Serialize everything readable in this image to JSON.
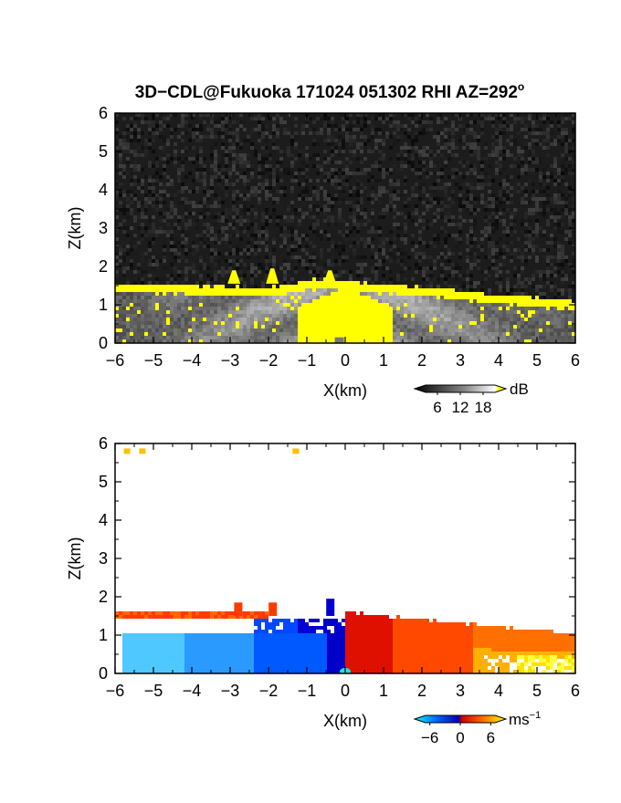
{
  "title": "3D−CDL@Fukuoka 171024 051302 RHI AZ=292",
  "title_superscript": "o",
  "chart_data": [
    {
      "type": "heatmap",
      "quantity": "reflectivity",
      "xlabel": "X(km)",
      "ylabel": "Z(km)",
      "xlim": [
        -6,
        6
      ],
      "ylim": [
        0,
        6
      ],
      "xticks": [
        "−6",
        "−5",
        "−4",
        "−3",
        "−2",
        "−1",
        "0",
        "1",
        "2",
        "3",
        "4",
        "5",
        "6"
      ],
      "yticks": [
        "0",
        "1",
        "2",
        "3",
        "4",
        "5",
        "6"
      ],
      "colorbar": {
        "unit": "dB",
        "ticks": [
          "6",
          "12",
          "18"
        ],
        "tick_values": [
          6,
          12,
          18
        ],
        "range": [
          0,
          24
        ],
        "colors": [
          "#000000",
          "#ffffff",
          "#ffff00"
        ]
      },
      "background_color": "#1a1a1a",
      "features": {
        "layer_top_km": [
          [
            -6,
            1.55
          ],
          [
            -4,
            1.5
          ],
          [
            -2,
            1.45
          ],
          [
            -0.5,
            1.7
          ],
          [
            0,
            1.6
          ],
          [
            2,
            1.45
          ],
          [
            4,
            1.25
          ],
          [
            6,
            1.1
          ]
        ],
        "plumes": [
          [
            -2.9,
            1.9
          ],
          [
            -1.9,
            1.95
          ],
          [
            -0.4,
            1.9
          ]
        ],
        "core_x_range": [
          -1.2,
          1.2
        ]
      }
    },
    {
      "type": "heatmap",
      "quantity": "radial_velocity",
      "xlabel": "X(km)",
      "ylabel": "Z(km)",
      "xlim": [
        -6,
        6
      ],
      "ylim": [
        0,
        6
      ],
      "xticks": [
        "−6",
        "−5",
        "−4",
        "−3",
        "−2",
        "−1",
        "0",
        "1",
        "2",
        "3",
        "4",
        "5",
        "6"
      ],
      "yticks": [
        "0",
        "1",
        "2",
        "3",
        "4",
        "5",
        "6"
      ],
      "colorbar": {
        "unit": "ms",
        "unit_exponent": "−1",
        "ticks": [
          "−6",
          "0",
          "6"
        ],
        "tick_values": [
          -6,
          0,
          6
        ],
        "range": [
          -9,
          9
        ],
        "colors": [
          "#00ffff",
          "#0050ff",
          "#0000c0",
          "#ff0000",
          "#ff8000",
          "#ffff00"
        ]
      },
      "background_color": "#ffffff",
      "features": {
        "negative_velocity_x_range": [
          -6,
          0
        ],
        "positive_velocity_x_range": [
          0,
          6
        ],
        "negative_layer_top_km": 1.05,
        "positive_layer_top_km": [
          [
            0,
            1.6
          ],
          [
            6,
            1.05
          ]
        ],
        "upper_band_km": [
          1.4,
          1.6
        ],
        "isolated_echoes": [
          [
            -5.7,
            5.8
          ],
          [
            -5.3,
            5.8
          ],
          [
            -1.3,
            5.8
          ]
        ]
      }
    }
  ]
}
